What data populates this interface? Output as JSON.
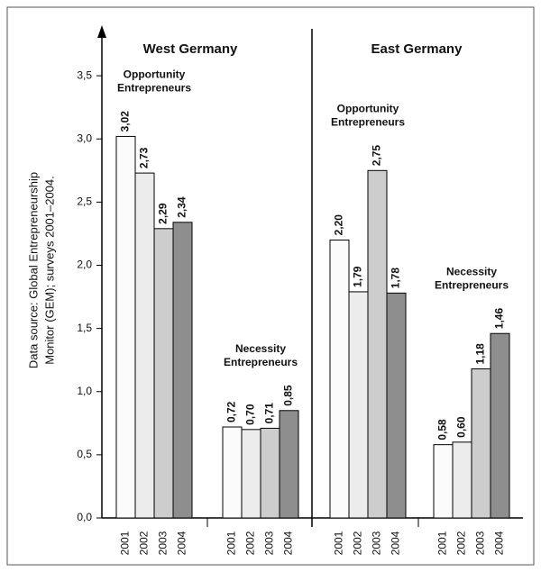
{
  "chart_data": {
    "type": "bar",
    "ylabel": [
      "Data source: Global Entrepreneurship",
      "Monitor (GEM); surveys 2001–2004."
    ],
    "ylim": [
      0,
      3.9
    ],
    "yticks": [
      {
        "value": 0,
        "label": "0,0"
      },
      {
        "value": 0.5,
        "label": "0,5"
      },
      {
        "value": 1,
        "label": "1,0"
      },
      {
        "value": 1.5,
        "label": "1,5"
      },
      {
        "value": 2,
        "label": "2,0"
      },
      {
        "value": 2.5,
        "label": "2,5"
      },
      {
        "value": 3,
        "label": "3,0"
      },
      {
        "value": 3.5,
        "label": "3,5"
      }
    ],
    "colors": [
      "#fbfbfb",
      "#ececec",
      "#cdcdcd",
      "#8e8e8e"
    ],
    "panels": [
      {
        "title": "West Germany",
        "groups": [
          {
            "label": [
              "Opportunity",
              "Entrepreneurs"
            ],
            "categories": [
              "2001",
              "2002",
              "2003",
              "2004"
            ],
            "values": [
              3.02,
              2.73,
              2.29,
              2.34
            ],
            "value_labels": [
              "3,02",
              "2,73",
              "2,29",
              "2,34"
            ]
          },
          {
            "label": [
              "Necessity",
              "Entrepreneurs"
            ],
            "categories": [
              "2001",
              "2002",
              "2003",
              "2004"
            ],
            "values": [
              0.72,
              0.7,
              0.71,
              0.85
            ],
            "value_labels": [
              "0,72",
              "0,70",
              "0,71",
              "0,85"
            ]
          }
        ]
      },
      {
        "title": "East Germany",
        "groups": [
          {
            "label": [
              "Opportunity",
              "Entrepreneurs"
            ],
            "categories": [
              "2001",
              "2002",
              "2003",
              "2004"
            ],
            "values": [
              2.2,
              1.79,
              2.75,
              1.78
            ],
            "value_labels": [
              "2,20",
              "1,79",
              "2,75",
              "1,78"
            ]
          },
          {
            "label": [
              "Necessity",
              "Entrepreneurs"
            ],
            "categories": [
              "2001",
              "2002",
              "2003",
              "2004"
            ],
            "values": [
              0.58,
              0.6,
              1.18,
              1.46
            ],
            "value_labels": [
              "0,58",
              "0,60",
              "1,18",
              "1,46"
            ]
          }
        ]
      }
    ]
  }
}
